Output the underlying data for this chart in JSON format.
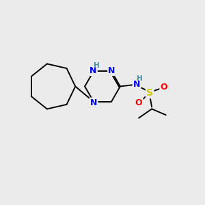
{
  "bg_color": "#ebebeb",
  "bond_color": "#000000",
  "N_color": "#0000ff",
  "S_color": "#cccc00",
  "O_color": "#ff0000",
  "H_color": "#4a8fa8",
  "font_size_atom": 9,
  "font_size_H": 7.5,
  "line_width": 1.4,
  "figsize": [
    3.0,
    3.0
  ],
  "dpi": 100,
  "xlim": [
    0,
    10
  ],
  "ylim": [
    0,
    10
  ]
}
